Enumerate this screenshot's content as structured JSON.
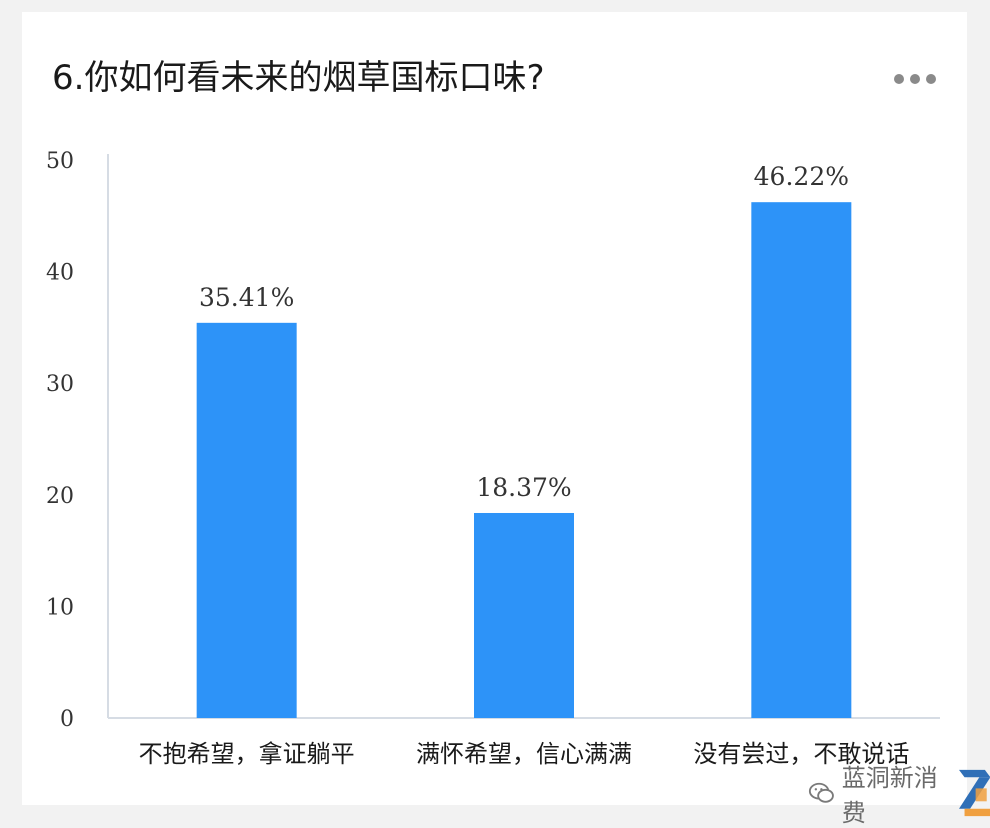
{
  "header": {
    "title": "6.你如何看未来的烟草国标口味?"
  },
  "chart_data": {
    "type": "bar",
    "categories": [
      "不抱希望，拿证躺平",
      "满怀希望，信心满满",
      "没有尝过，不敢说话"
    ],
    "values": [
      35.41,
      18.37,
      46.22
    ],
    "data_labels": [
      "35.41%",
      "18.37%",
      "46.22%"
    ],
    "ylim": [
      0,
      50
    ],
    "yticks": [
      0,
      10,
      20,
      30,
      40,
      50
    ],
    "bar_color": "#2d93f8",
    "grid": false,
    "legend": "none",
    "title": ""
  },
  "watermark": {
    "text": "蓝洞新消费"
  }
}
